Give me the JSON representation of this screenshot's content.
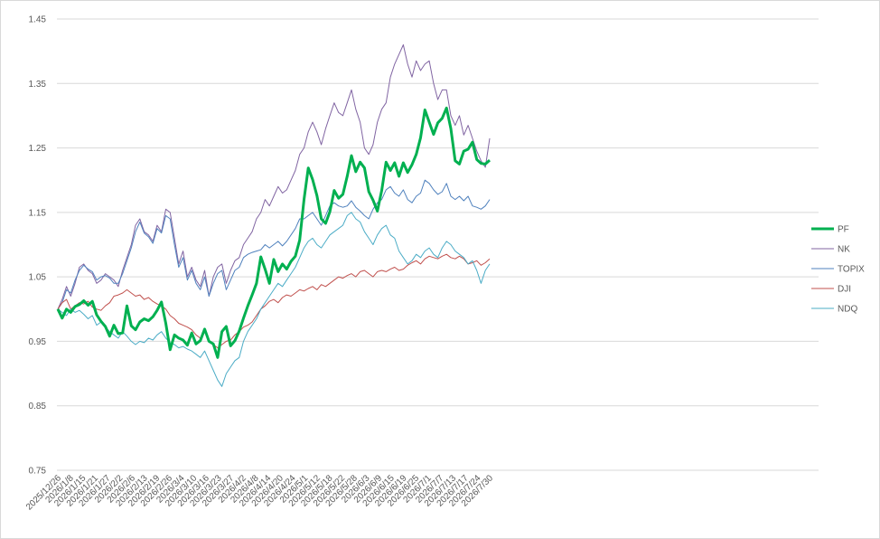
{
  "chart_data": {
    "type": "line",
    "title": "",
    "xlabel": "",
    "ylabel": "",
    "ylim": [
      0.75,
      1.45
    ],
    "yticks": [
      "0.75",
      "0.85",
      "0.95",
      "1.05",
      "1.15",
      "1.25",
      "1.35",
      "1.45"
    ],
    "grid": true,
    "legend_position": "right",
    "x_tick_labels": [
      "2025/12/26",
      "2026/1/8",
      "2026/1/15",
      "2026/1/21",
      "2026/1/27",
      "2026/2/2",
      "2026/2/6",
      "2026/2/13",
      "2026/2/19",
      "2026/2/26",
      "2026/3/4",
      "2026/3/10",
      "2026/3/16",
      "2026/3/23",
      "2026/3/27",
      "2026/4/2",
      "2026/4/8",
      "2026/4/14",
      "2026/4/20",
      "2026/4/24",
      "2026/5/1",
      "2026/5/12",
      "2026/5/18",
      "2026/5/22",
      "2026/5/28",
      "2026/6/3",
      "2026/6/9",
      "2026/6/15",
      "2026/6/19",
      "2026/6/25",
      "2026/7/1",
      "2026/7/7",
      "2026/7/13",
      "2026/7/17",
      "2026/7/24",
      "2026/7/30"
    ],
    "series": [
      {
        "name": "PF",
        "color": "#00b050",
        "values": [
          1.0,
          0.986,
          1.0,
          0.995,
          1.004,
          1.007,
          1.013,
          1.006,
          1.012,
          0.991,
          0.981,
          0.973,
          0.958,
          0.975,
          0.962,
          0.963,
          1.005,
          0.974,
          0.968,
          0.98,
          0.985,
          0.982,
          0.988,
          0.998,
          1.011,
          0.978,
          0.937,
          0.96,
          0.955,
          0.952,
          0.944,
          0.963,
          0.946,
          0.951,
          0.969,
          0.95,
          0.946,
          0.925,
          0.965,
          0.973,
          0.943,
          0.951,
          0.966,
          0.986,
          1.005,
          1.022,
          1.04,
          1.081,
          1.062,
          1.04,
          1.077,
          1.058,
          1.07,
          1.062,
          1.074,
          1.082,
          1.107,
          1.17,
          1.219,
          1.201,
          1.176,
          1.14,
          1.133,
          1.151,
          1.184,
          1.172,
          1.178,
          1.206,
          1.238,
          1.213,
          1.228,
          1.219,
          1.182,
          1.169,
          1.152,
          1.184,
          1.228,
          1.215,
          1.227,
          1.206,
          1.227,
          1.212,
          1.224,
          1.24,
          1.266,
          1.309,
          1.29,
          1.271,
          1.289,
          1.296,
          1.312,
          1.28,
          1.23,
          1.225,
          1.245,
          1.248,
          1.259,
          1.232,
          1.226,
          1.225,
          1.231
        ]
      },
      {
        "name": "NK",
        "color": "#8064a2",
        "values": [
          1.0,
          1.015,
          1.035,
          1.02,
          1.04,
          1.065,
          1.07,
          1.06,
          1.055,
          1.04,
          1.045,
          1.055,
          1.05,
          1.045,
          1.035,
          1.06,
          1.08,
          1.1,
          1.13,
          1.14,
          1.12,
          1.115,
          1.105,
          1.13,
          1.12,
          1.155,
          1.15,
          1.11,
          1.07,
          1.09,
          1.05,
          1.065,
          1.045,
          1.035,
          1.06,
          1.02,
          1.05,
          1.065,
          1.07,
          1.04,
          1.06,
          1.075,
          1.08,
          1.1,
          1.11,
          1.12,
          1.14,
          1.15,
          1.17,
          1.16,
          1.175,
          1.19,
          1.18,
          1.185,
          1.2,
          1.215,
          1.24,
          1.25,
          1.275,
          1.29,
          1.275,
          1.255,
          1.28,
          1.3,
          1.32,
          1.305,
          1.3,
          1.32,
          1.34,
          1.31,
          1.29,
          1.25,
          1.24,
          1.255,
          1.29,
          1.31,
          1.32,
          1.36,
          1.38,
          1.395,
          1.41,
          1.38,
          1.36,
          1.385,
          1.37,
          1.38,
          1.385,
          1.35,
          1.325,
          1.34,
          1.34,
          1.3,
          1.285,
          1.3,
          1.27,
          1.285,
          1.265,
          1.245,
          1.23,
          1.22,
          1.265
        ]
      },
      {
        "name": "TOPIX",
        "color": "#4f81bd",
        "values": [
          1.0,
          1.01,
          1.03,
          1.025,
          1.045,
          1.06,
          1.068,
          1.062,
          1.058,
          1.045,
          1.05,
          1.052,
          1.048,
          1.04,
          1.04,
          1.055,
          1.075,
          1.095,
          1.12,
          1.135,
          1.118,
          1.112,
          1.102,
          1.125,
          1.118,
          1.145,
          1.14,
          1.1,
          1.065,
          1.08,
          1.045,
          1.06,
          1.04,
          1.03,
          1.05,
          1.02,
          1.04,
          1.055,
          1.06,
          1.03,
          1.045,
          1.06,
          1.065,
          1.08,
          1.085,
          1.088,
          1.09,
          1.092,
          1.1,
          1.095,
          1.1,
          1.105,
          1.098,
          1.105,
          1.115,
          1.125,
          1.14,
          1.14,
          1.145,
          1.15,
          1.14,
          1.13,
          1.145,
          1.16,
          1.165,
          1.16,
          1.158,
          1.16,
          1.168,
          1.158,
          1.152,
          1.145,
          1.14,
          1.155,
          1.165,
          1.17,
          1.185,
          1.19,
          1.18,
          1.175,
          1.185,
          1.17,
          1.165,
          1.175,
          1.18,
          1.2,
          1.195,
          1.185,
          1.178,
          1.182,
          1.195,
          1.175,
          1.17,
          1.175,
          1.168,
          1.175,
          1.16,
          1.158,
          1.155,
          1.16,
          1.17
        ]
      },
      {
        "name": "DJI",
        "color": "#c0504d",
        "values": [
          1.0,
          1.01,
          1.015,
          1.0,
          1.005,
          1.01,
          1.008,
          1.012,
          1.003,
          1.0,
          0.998,
          1.005,
          1.01,
          1.02,
          1.022,
          1.025,
          1.03,
          1.025,
          1.02,
          1.022,
          1.015,
          1.018,
          1.012,
          1.008,
          1.005,
          1.0,
          0.99,
          0.985,
          0.978,
          0.975,
          0.972,
          0.968,
          0.96,
          0.955,
          0.965,
          0.95,
          0.945,
          0.94,
          0.945,
          0.95,
          0.952,
          0.96,
          0.965,
          0.972,
          0.975,
          0.98,
          0.99,
          1.0,
          1.005,
          1.012,
          1.015,
          1.01,
          1.018,
          1.022,
          1.02,
          1.025,
          1.03,
          1.028,
          1.032,
          1.035,
          1.03,
          1.038,
          1.035,
          1.04,
          1.045,
          1.05,
          1.048,
          1.052,
          1.055,
          1.05,
          1.058,
          1.06,
          1.055,
          1.05,
          1.058,
          1.06,
          1.058,
          1.062,
          1.065,
          1.06,
          1.062,
          1.068,
          1.072,
          1.075,
          1.07,
          1.078,
          1.082,
          1.08,
          1.078,
          1.082,
          1.085,
          1.08,
          1.078,
          1.082,
          1.078,
          1.07,
          1.072,
          1.075,
          1.068,
          1.072,
          1.078
        ]
      },
      {
        "name": "NDQ",
        "color": "#4bacc6",
        "values": [
          1.0,
          0.995,
          0.99,
          1.0,
          0.995,
          0.998,
          0.992,
          0.985,
          0.99,
          0.975,
          0.98,
          0.972,
          0.965,
          0.96,
          0.955,
          0.965,
          0.958,
          0.95,
          0.945,
          0.95,
          0.948,
          0.955,
          0.952,
          0.96,
          0.965,
          0.955,
          0.948,
          0.945,
          0.94,
          0.942,
          0.938,
          0.935,
          0.93,
          0.925,
          0.935,
          0.92,
          0.905,
          0.89,
          0.88,
          0.9,
          0.91,
          0.92,
          0.925,
          0.95,
          0.965,
          0.975,
          0.985,
          1.0,
          1.01,
          1.02,
          1.03,
          1.04,
          1.035,
          1.045,
          1.055,
          1.065,
          1.08,
          1.095,
          1.105,
          1.11,
          1.1,
          1.095,
          1.105,
          1.115,
          1.12,
          1.125,
          1.13,
          1.145,
          1.15,
          1.14,
          1.135,
          1.12,
          1.11,
          1.1,
          1.115,
          1.125,
          1.13,
          1.115,
          1.11,
          1.09,
          1.08,
          1.07,
          1.075,
          1.085,
          1.08,
          1.09,
          1.095,
          1.085,
          1.08,
          1.095,
          1.105,
          1.1,
          1.09,
          1.085,
          1.08,
          1.07,
          1.075,
          1.06,
          1.04,
          1.06,
          1.07
        ]
      }
    ]
  }
}
